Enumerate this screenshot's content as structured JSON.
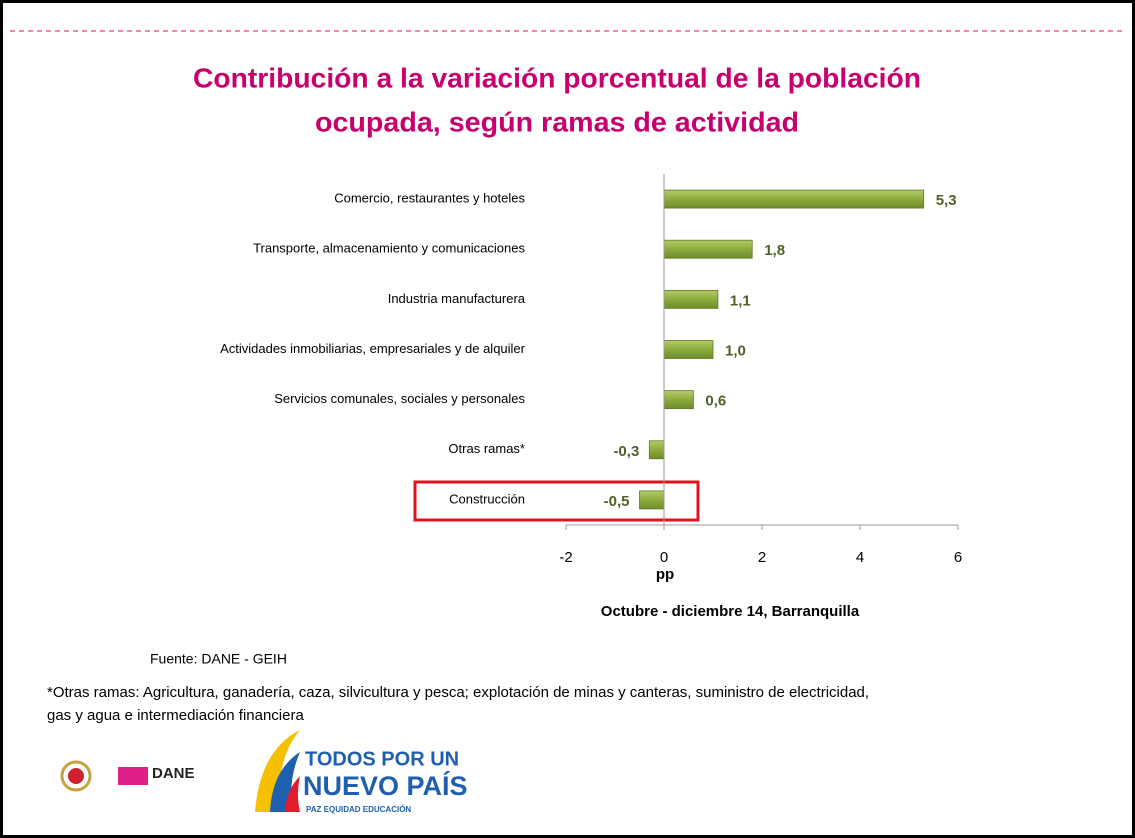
{
  "chart_data": {
    "type": "bar",
    "orientation": "horizontal",
    "title": [
      "Contribución a la variación porcentual de la población",
      "ocupada, según ramas de actividad"
    ],
    "categories": [
      "Comercio, restaurantes y hoteles",
      "Transporte, almacenamiento y comunicaciones",
      "Industria manufacturera",
      "Actividades inmobiliarias, empresariales y de alquiler",
      "Servicios comunales, sociales y personales",
      "Otras ramas*",
      "Construcción"
    ],
    "values": [
      5.3,
      1.8,
      1.1,
      1.0,
      0.6,
      -0.3,
      -0.5
    ],
    "value_labels": [
      "5,3",
      "1,8",
      "1,1",
      "1,0",
      "0,6",
      "-0,3",
      "-0,5"
    ],
    "color": "#8cab3c",
    "xlim": [
      -2,
      6
    ],
    "xticks": [
      -2,
      0,
      2,
      4,
      6
    ],
    "xlabel": "pp",
    "subtitle": "Octubre - diciembre 14, Barranquilla"
  },
  "source": "Fuente: DANE - GEIH",
  "footnote": [
    "*Otras ramas: Agricultura, ganadería, caza, silvicultura y pesca; explotación de minas y canteras, suministro de electricidad,",
    "gas y agua e intermediación financiera"
  ],
  "logos": {
    "dane": "DANE",
    "slogan": [
      "TODOS POR UN",
      "NUEVO PAÍS",
      "PAZ  EQUIDAD  EDUCACIÓN"
    ]
  }
}
